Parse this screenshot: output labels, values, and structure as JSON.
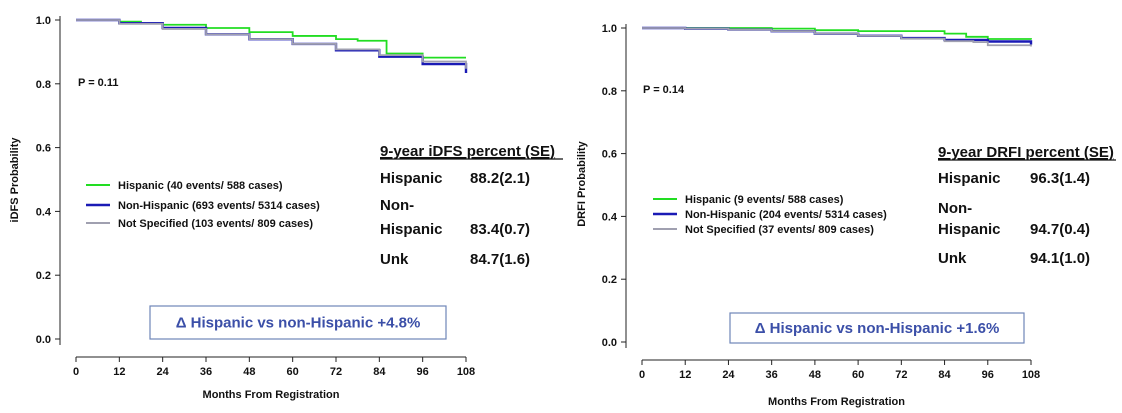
{
  "colors": {
    "hispanic": "#22dd22",
    "non_hispanic": "#1a1ab5",
    "not_specified": "#a0a0b0",
    "delta_text": "#3b4fa8",
    "delta_border": "#6f86b8"
  },
  "chart_data": [
    {
      "type": "line",
      "title": "",
      "xlabel": "Months From Registration",
      "ylabel": "iDFS Probability",
      "xlim": [
        0,
        108
      ],
      "ylim": [
        0,
        1.0
      ],
      "x_ticks": [
        "0",
        "12",
        "24",
        "36",
        "48",
        "60",
        "72",
        "84",
        "96",
        "108"
      ],
      "y_ticks": [
        "0.0",
        "0.2",
        "0.4",
        "0.6",
        "0.8",
        "1.0"
      ],
      "p_value": "P = 0.11",
      "series": [
        {
          "name": "Hispanic  (40 events/ 588 cases)",
          "color_key": "hispanic",
          "x": [
            0,
            12,
            18,
            24,
            36,
            48,
            60,
            72,
            78,
            84,
            86,
            96,
            108
          ],
          "y": [
            1.0,
            0.995,
            0.99,
            0.985,
            0.975,
            0.962,
            0.95,
            0.94,
            0.935,
            0.935,
            0.895,
            0.882,
            0.882
          ]
        },
        {
          "name": "Non-Hispanic  (693 events/ 5314 cases)",
          "color_key": "non_hispanic",
          "x": [
            0,
            12,
            24,
            36,
            48,
            60,
            72,
            84,
            96,
            108
          ],
          "y": [
            1.0,
            0.99,
            0.975,
            0.955,
            0.94,
            0.925,
            0.905,
            0.885,
            0.862,
            0.834
          ]
        },
        {
          "name": "Not Specified  (103 events/ 809 cases)",
          "color_key": "not_specified",
          "x": [
            0,
            12,
            24,
            36,
            48,
            60,
            72,
            84,
            96,
            108
          ],
          "y": [
            1.0,
            0.988,
            0.972,
            0.955,
            0.94,
            0.925,
            0.908,
            0.89,
            0.87,
            0.847
          ]
        }
      ],
      "summary": {
        "heading": "9-year iDFS percent (SE)",
        "rows": [
          {
            "label": "Hispanic",
            "value": "88.2(2.1)"
          },
          {
            "label": "Non-\nHispanic",
            "value": "83.4(0.7)"
          },
          {
            "label": "Unk",
            "value": "84.7(1.6)"
          }
        ]
      },
      "delta": "Δ Hispanic vs non-Hispanic +4.8%"
    },
    {
      "type": "line",
      "title": "",
      "xlabel": "Months From Registration",
      "ylabel": "DRFI Probability",
      "xlim": [
        0,
        108
      ],
      "ylim": [
        0,
        1.0
      ],
      "x_ticks": [
        "0",
        "12",
        "24",
        "36",
        "48",
        "60",
        "72",
        "84",
        "96",
        "108"
      ],
      "y_ticks": [
        "0.0",
        "0.2",
        "0.4",
        "0.6",
        "0.8",
        "1.0"
      ],
      "p_value": "P = 0.14",
      "series": [
        {
          "name": "Hispanic  (9 events/ 588 cases)",
          "color_key": "hispanic",
          "x": [
            0,
            24,
            36,
            48,
            60,
            72,
            80,
            84,
            90,
            96,
            108
          ],
          "y": [
            1.0,
            1.0,
            0.998,
            0.993,
            0.99,
            0.99,
            0.99,
            0.982,
            0.972,
            0.965,
            0.963
          ]
        },
        {
          "name": "Non-Hispanic  (204 events/ 5314 cases)",
          "color_key": "non_hispanic",
          "x": [
            0,
            12,
            24,
            36,
            48,
            60,
            72,
            84,
            96,
            108
          ],
          "y": [
            1.0,
            0.998,
            0.995,
            0.99,
            0.982,
            0.975,
            0.968,
            0.962,
            0.957,
            0.947
          ]
        },
        {
          "name": "Not Specified  (37 events/ 809 cases)",
          "color_key": "not_specified",
          "x": [
            0,
            12,
            24,
            36,
            48,
            60,
            72,
            84,
            92,
            96,
            108
          ],
          "y": [
            1.0,
            0.998,
            0.995,
            0.99,
            0.982,
            0.975,
            0.966,
            0.958,
            0.955,
            0.945,
            0.941
          ]
        }
      ],
      "summary": {
        "heading": "9-year DRFI percent (SE)",
        "rows": [
          {
            "label": "Hispanic",
            "value": "96.3(1.4)"
          },
          {
            "label": "Non-\nHispanic",
            "value": "94.7(0.4)"
          },
          {
            "label": "Unk",
            "value": "94.1(1.0)"
          }
        ]
      },
      "delta": "Δ Hispanic vs non-Hispanic +1.6%"
    }
  ]
}
